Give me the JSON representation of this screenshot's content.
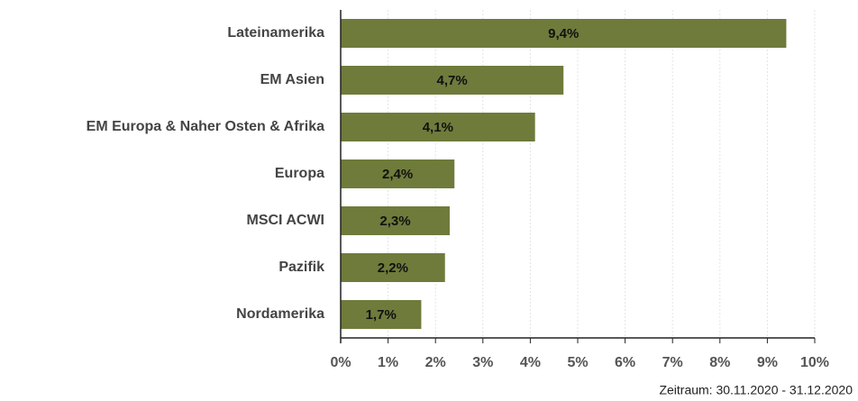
{
  "chart_data": {
    "type": "bar",
    "orientation": "horizontal",
    "categories": [
      "Lateinamerika",
      "EM Asien",
      "EM Europa & Naher Osten & Afrika",
      "Europa",
      "MSCI ACWI",
      "Pazifik",
      "Nordamerika"
    ],
    "values": [
      9.4,
      4.7,
      4.1,
      2.4,
      2.3,
      2.2,
      1.7
    ],
    "value_labels": [
      "9,4%",
      "4,7%",
      "4,1%",
      "2,4%",
      "2,3%",
      "2,2%",
      "1,7%"
    ],
    "color": "#6e7b3b",
    "xlim": [
      0,
      10
    ],
    "xticks": [
      {
        "value": 0,
        "label": "0%"
      },
      {
        "value": 1,
        "label": "1%"
      },
      {
        "value": 2,
        "label": "2%"
      },
      {
        "value": 3,
        "label": "3%"
      },
      {
        "value": 4,
        "label": "4%"
      },
      {
        "value": 5,
        "label": "5%"
      },
      {
        "value": 6,
        "label": "6%"
      },
      {
        "value": 7,
        "label": "7%"
      },
      {
        "value": 8,
        "label": "8%"
      },
      {
        "value": 9,
        "label": "9%"
      },
      {
        "value": 10,
        "label": "10%"
      }
    ],
    "grid": true,
    "footnote": "Zeitraum: 30.11.2020 - 31.12.2020"
  }
}
